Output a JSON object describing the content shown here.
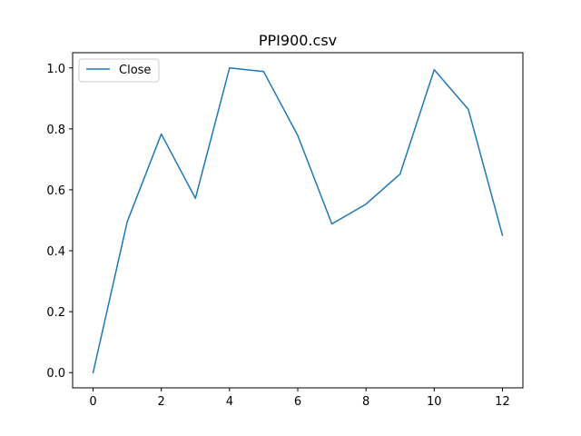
{
  "chart_data": {
    "type": "line",
    "title": "PPI900.csv",
    "xlabel": "",
    "ylabel": "",
    "x": [
      0,
      1,
      2,
      3,
      4,
      5,
      6,
      7,
      8,
      9,
      10,
      11,
      12
    ],
    "series": [
      {
        "name": "Close",
        "color": "#1f77b4",
        "values": [
          0.0,
          0.495,
          0.783,
          0.572,
          1.0,
          0.988,
          0.778,
          0.488,
          0.553,
          0.652,
          0.994,
          0.864,
          0.451
        ]
      }
    ],
    "xlim": [
      -0.6,
      12.6
    ],
    "ylim": [
      -0.05,
      1.05
    ],
    "xticks": [
      0,
      2,
      4,
      6,
      8,
      10,
      12
    ],
    "xtick_labels": [
      "0",
      "2",
      "4",
      "6",
      "8",
      "10",
      "12"
    ],
    "yticks": [
      0.0,
      0.2,
      0.4,
      0.6,
      0.8,
      1.0
    ],
    "ytick_labels": [
      "0.0",
      "0.2",
      "0.4",
      "0.6",
      "0.8",
      "1.0"
    ],
    "grid": false,
    "legend_position": "top-left"
  }
}
